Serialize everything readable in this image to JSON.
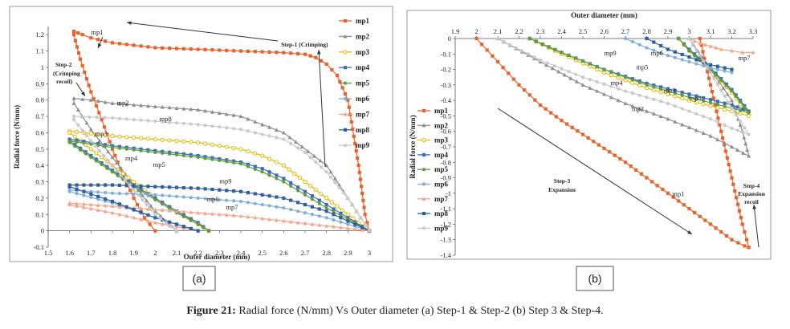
{
  "caption": {
    "label": "Figure 21:",
    "text": "Radial force (N/mm) Vs Outer diameter (a) Step-1 & Step-2 (b) Step 3 & Step-4."
  },
  "colors": {
    "mp1": "#E8622C",
    "mp2": "#8E8E8E",
    "mp3": "#E6B800",
    "mp4": "#3D6DB5",
    "mp5": "#5E9E3A",
    "mp6": "#7FAED9",
    "mp7": "#F2A68A",
    "mp8": "#2F5F9E",
    "mp9": "#C9C9C9",
    "annotation": "#333333"
  },
  "chart_data": [
    {
      "type": "line",
      "id": "a",
      "panel_label": "(a)",
      "xlabel": "Outer diameter (mm)",
      "ylabel": "Radial force (N/mm)",
      "xlim": [
        1.5,
        3.0
      ],
      "ylim": [
        -0.1,
        1.25
      ],
      "xticks": [
        "1.5",
        "1.6",
        "1.7",
        "1.8",
        "1.9",
        "2",
        "2.1",
        "2.2",
        "2.3",
        "2.4",
        "2.5",
        "2.6",
        "2.7",
        "2.8",
        "2.9",
        "3"
      ],
      "yticks": [
        "-0.1",
        "0",
        "0.1",
        "0.2",
        "0.3",
        "0.4",
        "0.5",
        "0.6",
        "0.7",
        "0.8",
        "0.9",
        "1",
        "1.1",
        "1.2"
      ],
      "legend": [
        "mp1",
        "mp2",
        "mp3",
        "mp4",
        "mp5",
        "mp6",
        "mp7",
        "mp8",
        "mp9"
      ],
      "series": [
        {
          "name": "mp1",
          "x": [
            3.0,
            2.98,
            2.95,
            2.9,
            2.85,
            2.8,
            2.75,
            2.7,
            2.6,
            2.4,
            2.2,
            2.0,
            1.8,
            1.7,
            1.66,
            1.64,
            1.62,
            1.62,
            1.65,
            1.7,
            1.75,
            1.8,
            1.85,
            1.9,
            1.95,
            2.0
          ],
          "y": [
            0,
            0.1,
            0.4,
            0.8,
            0.95,
            1.02,
            1.06,
            1.08,
            1.09,
            1.1,
            1.11,
            1.12,
            1.15,
            1.18,
            1.2,
            1.21,
            1.22,
            1.2,
            1.05,
            0.85,
            0.68,
            0.5,
            0.34,
            0.2,
            0.08,
            0
          ]
        },
        {
          "name": "mp2",
          "x": [
            3.0,
            2.9,
            2.8,
            2.6,
            2.4,
            2.2,
            2.0,
            1.8,
            1.7,
            1.62,
            1.62,
            1.7,
            1.8,
            1.9,
            2.0,
            2.1
          ],
          "y": [
            0,
            0.2,
            0.4,
            0.6,
            0.7,
            0.74,
            0.76,
            0.78,
            0.8,
            0.81,
            0.78,
            0.62,
            0.45,
            0.28,
            0.12,
            0
          ]
        },
        {
          "name": "mp3",
          "x": [
            3.0,
            2.9,
            2.8,
            2.7,
            2.6,
            2.5,
            2.4,
            2.2,
            2.0,
            1.8,
            1.6,
            1.6,
            1.7,
            1.8,
            1.9,
            2.0,
            2.1,
            2.2,
            2.25
          ],
          "y": [
            0,
            0.1,
            0.2,
            0.3,
            0.4,
            0.46,
            0.5,
            0.54,
            0.56,
            0.58,
            0.61,
            0.6,
            0.5,
            0.4,
            0.3,
            0.2,
            0.12,
            0.04,
            0
          ]
        },
        {
          "name": "mp4",
          "x": [
            3.0,
            2.9,
            2.8,
            2.7,
            2.6,
            2.5,
            2.4,
            2.2,
            2.0,
            1.8,
            1.6,
            1.6,
            1.7,
            1.8,
            1.9,
            2.0,
            2.1,
            2.2,
            2.25
          ],
          "y": [
            0,
            0.08,
            0.16,
            0.24,
            0.32,
            0.38,
            0.42,
            0.46,
            0.49,
            0.52,
            0.56,
            0.55,
            0.46,
            0.37,
            0.28,
            0.2,
            0.12,
            0.05,
            0
          ]
        },
        {
          "name": "mp5",
          "x": [
            3.0,
            2.9,
            2.8,
            2.7,
            2.6,
            2.5,
            2.4,
            2.2,
            2.0,
            1.8,
            1.6,
            1.6,
            1.7,
            1.8,
            1.9,
            2.0,
            2.1,
            2.2,
            2.25
          ],
          "y": [
            0,
            0.07,
            0.14,
            0.22,
            0.3,
            0.36,
            0.41,
            0.45,
            0.48,
            0.51,
            0.55,
            0.54,
            0.45,
            0.36,
            0.27,
            0.19,
            0.11,
            0.04,
            0
          ]
        },
        {
          "name": "mp6",
          "x": [
            3.0,
            2.9,
            2.8,
            2.6,
            2.4,
            2.2,
            2.0,
            1.8,
            1.6,
            1.6,
            1.8,
            2.0,
            2.2
          ],
          "y": [
            0,
            0.04,
            0.08,
            0.14,
            0.18,
            0.2,
            0.22,
            0.23,
            0.25,
            0.24,
            0.17,
            0.08,
            0
          ]
        },
        {
          "name": "mp7",
          "x": [
            3.0,
            2.8,
            2.6,
            2.4,
            2.2,
            2.0,
            1.8,
            1.6,
            1.6,
            1.8,
            2.0,
            2.2
          ],
          "y": [
            0,
            0.03,
            0.06,
            0.09,
            0.11,
            0.13,
            0.15,
            0.17,
            0.16,
            0.11,
            0.05,
            0
          ]
        },
        {
          "name": "mp8",
          "x": [
            3.0,
            2.9,
            2.8,
            2.6,
            2.4,
            2.2,
            2.0,
            1.8,
            1.6,
            1.6,
            1.8,
            2.0,
            2.2
          ],
          "y": [
            0,
            0.06,
            0.12,
            0.2,
            0.24,
            0.26,
            0.27,
            0.28,
            0.28,
            0.27,
            0.18,
            0.08,
            0
          ]
        },
        {
          "name": "mp9",
          "x": [
            3.0,
            2.9,
            2.8,
            2.7,
            2.6,
            2.4,
            2.2,
            2.0,
            1.8,
            1.62,
            1.62,
            1.7,
            1.8,
            1.9,
            2.0,
            2.1
          ],
          "y": [
            0,
            0.2,
            0.36,
            0.48,
            0.56,
            0.62,
            0.65,
            0.67,
            0.69,
            0.7,
            0.68,
            0.55,
            0.4,
            0.25,
            0.1,
            0
          ]
        }
      ],
      "annotations": [
        {
          "text": "Step-1 (Crimping)",
          "kind": "arrow-label"
        },
        {
          "text": "Step-2",
          "kind": "arrow-label"
        },
        {
          "text": "(Crimping",
          "kind": "arrow-label"
        },
        {
          "text": "recoil)",
          "kind": "arrow-label"
        }
      ],
      "curve_labels": [
        "mp1",
        "mp2",
        "mp8",
        "mp3",
        "mp4",
        "mp5",
        "mp9",
        "mp6",
        "mp7"
      ]
    },
    {
      "type": "line",
      "id": "b",
      "panel_label": "(b)",
      "xlabel": "Outer diameter (mm)",
      "ylabel": "Radial force (N/mm)",
      "xlim": [
        1.9,
        3.3
      ],
      "ylim": [
        -1.4,
        0
      ],
      "xaxis_position": "top",
      "xticks": [
        "1.9",
        "2",
        "2.1",
        "2.2",
        "2.3",
        "2.4",
        "2.5",
        "2.6",
        "2.7",
        "2.8",
        "2.9",
        "3",
        "3.1",
        "3.2",
        "3.3"
      ],
      "yticks": [
        "0",
        "-0.1",
        "-0.2",
        "-0.3",
        "-0.4",
        "-0.5",
        "-0.6",
        "-0.7",
        "-0.8",
        "-0.9",
        "-1",
        "-1.1",
        "-1.2",
        "-1.3",
        "-1.4"
      ],
      "legend": [
        "mp1",
        "mp2",
        "mp3",
        "mp4",
        "mp5",
        "mp6",
        "mp7",
        "mp8",
        "mp9"
      ],
      "series": [
        {
          "name": "mp1",
          "x": [
            2.0,
            2.1,
            2.2,
            2.3,
            2.4,
            2.5,
            2.6,
            2.7,
            2.8,
            2.9,
            3.0,
            3.1,
            3.2,
            3.26,
            3.28,
            3.25,
            3.2,
            3.15,
            3.1,
            3.05
          ],
          "y": [
            0,
            -0.15,
            -0.3,
            -0.43,
            -0.53,
            -0.62,
            -0.71,
            -0.8,
            -0.9,
            -1.0,
            -1.1,
            -1.2,
            -1.3,
            -1.34,
            -1.35,
            -1.2,
            -0.9,
            -0.6,
            -0.3,
            0
          ]
        },
        {
          "name": "mp2",
          "x": [
            2.1,
            2.3,
            2.5,
            2.7,
            2.9,
            3.1,
            3.2,
            3.28,
            3.25,
            3.2,
            3.1,
            3.0
          ],
          "y": [
            0,
            -0.15,
            -0.3,
            -0.42,
            -0.52,
            -0.63,
            -0.7,
            -0.76,
            -0.6,
            -0.4,
            -0.2,
            0
          ]
        },
        {
          "name": "mp3",
          "x": [
            2.25,
            2.4,
            2.6,
            2.8,
            3.0,
            3.2,
            3.28,
            3.2,
            3.1,
            3.0,
            2.95
          ],
          "y": [
            0,
            -0.1,
            -0.22,
            -0.32,
            -0.4,
            -0.47,
            -0.5,
            -0.35,
            -0.2,
            -0.08,
            0
          ]
        },
        {
          "name": "mp4",
          "x": [
            2.25,
            2.4,
            2.6,
            2.8,
            3.0,
            3.2,
            3.28,
            3.2,
            3.1,
            3.0,
            2.95
          ],
          "y": [
            0,
            -0.09,
            -0.2,
            -0.29,
            -0.36,
            -0.43,
            -0.47,
            -0.33,
            -0.19,
            -0.07,
            0
          ]
        },
        {
          "name": "mp5",
          "x": [
            2.25,
            2.4,
            2.6,
            2.8,
            3.0,
            3.2,
            3.28,
            3.2,
            3.1,
            3.0,
            2.95
          ],
          "y": [
            0,
            -0.09,
            -0.2,
            -0.3,
            -0.38,
            -0.45,
            -0.48,
            -0.34,
            -0.2,
            -0.08,
            0
          ]
        },
        {
          "name": "mp6",
          "x": [
            2.7,
            2.8,
            2.9,
            3.0,
            3.1,
            3.2
          ],
          "y": [
            0,
            -0.06,
            -0.11,
            -0.15,
            -0.19,
            -0.22
          ]
        },
        {
          "name": "mp7",
          "x": [
            3.0,
            3.05,
            3.1,
            3.15,
            3.2,
            3.25,
            3.3
          ],
          "y": [
            0,
            -0.03,
            -0.05,
            -0.07,
            -0.08,
            -0.09,
            -0.09
          ]
        },
        {
          "name": "mp8",
          "x": [
            2.8,
            2.9,
            3.0,
            3.1,
            3.2
          ],
          "y": [
            0,
            -0.07,
            -0.12,
            -0.17,
            -0.2
          ]
        },
        {
          "name": "mp9",
          "x": [
            2.1,
            2.3,
            2.5,
            2.7,
            2.9,
            3.1,
            3.2,
            3.28,
            3.2,
            3.1,
            3.0
          ],
          "y": [
            0,
            -0.14,
            -0.25,
            -0.34,
            -0.42,
            -0.52,
            -0.58,
            -0.62,
            -0.45,
            -0.22,
            0
          ]
        }
      ],
      "annotations": [
        {
          "text": "Step-3",
          "kind": "arrow-label"
        },
        {
          "text": "Expansion",
          "kind": "arrow-label"
        },
        {
          "text": "Step-4",
          "kind": "arrow-label"
        },
        {
          "text": "Expansion",
          "kind": "arrow-label"
        },
        {
          "text": "recoil",
          "kind": "arrow-label"
        }
      ],
      "curve_labels": [
        "mp9",
        "mp6",
        "mp7",
        "mp5",
        "mp4",
        "mp3",
        "mp8",
        "mp2",
        "mp1"
      ]
    }
  ]
}
